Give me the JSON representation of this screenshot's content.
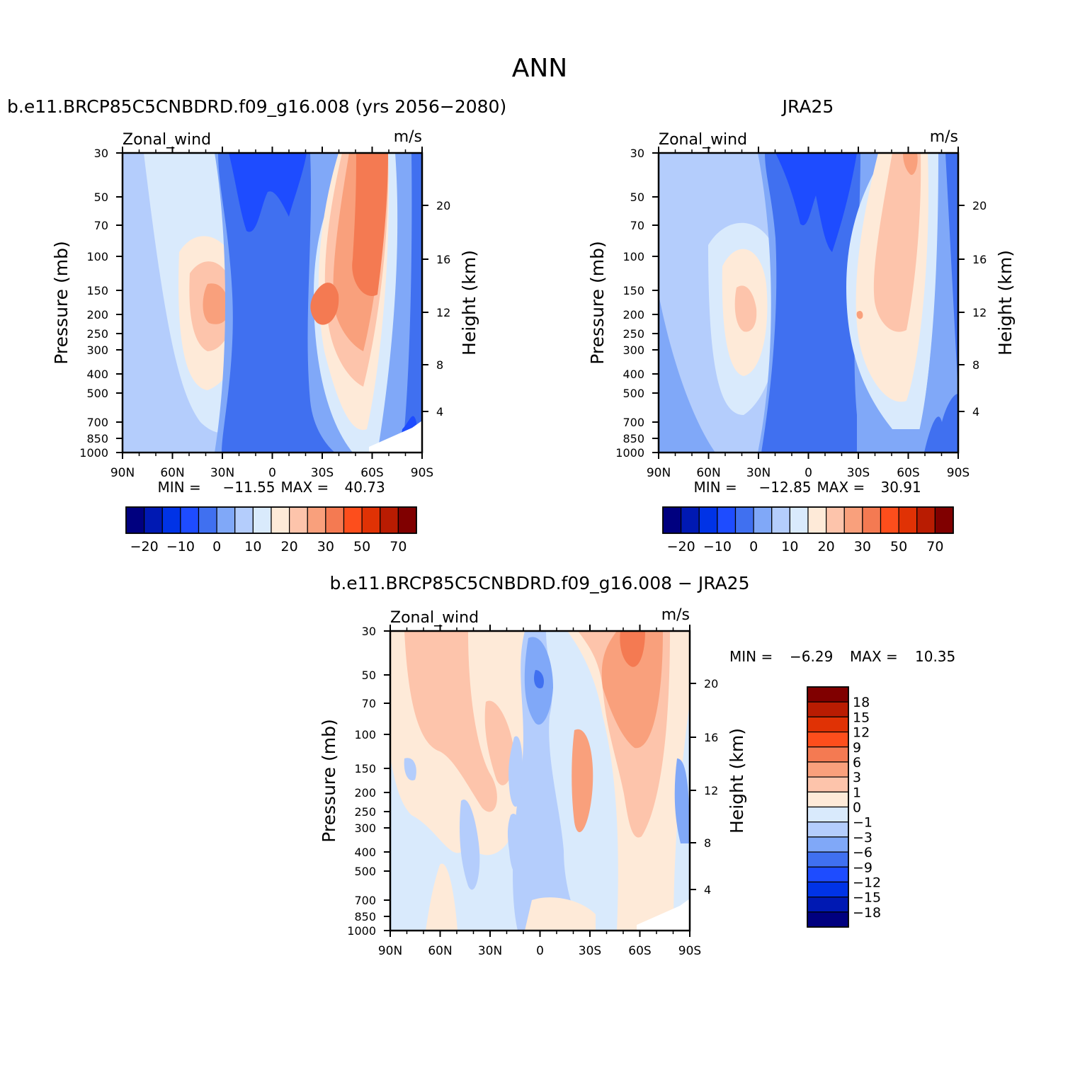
{
  "figure_title": "ANN",
  "chart_data": [
    {
      "type": "heatmap",
      "panel_title": "b.e11.BRCP85C5CNBDRD.f09_g16.008 (yrs 2056-2080)",
      "variable": "Zonal_wind",
      "units": "m/s",
      "ylabel": "Pressure (mb)",
      "ylabel_right": "Height (km)",
      "xticks": [
        "90N",
        "60N",
        "30N",
        "0",
        "30S",
        "60S",
        "90S"
      ],
      "yticks": [
        "30",
        "50",
        "70",
        "100",
        "150",
        "200",
        "250",
        "300",
        "400",
        "500",
        "700",
        "850",
        "1000"
      ],
      "height_ticks": [
        "20",
        "16",
        "12",
        "8",
        "4"
      ],
      "stats": {
        "min_label": "MIN =",
        "min": "-11.55",
        "max_label": "MAX =",
        "max": "40.73"
      },
      "features": [
        {
          "lat": -45,
          "p": 180,
          "value": 33
        },
        {
          "lat": -50,
          "p": 40,
          "value": 40
        },
        {
          "lat": 35,
          "p": 180,
          "value": 23
        },
        {
          "lat": 5,
          "p": 40,
          "value": -11
        }
      ]
    },
    {
      "type": "heatmap",
      "panel_title": "JRA25",
      "variable": "Zonal_wind",
      "units": "m/s",
      "ylabel": "Pressure (mb)",
      "ylabel_right": "Height (km)",
      "xticks": [
        "90N",
        "60N",
        "30N",
        "0",
        "30S",
        "60S",
        "90S"
      ],
      "yticks": [
        "30",
        "50",
        "70",
        "100",
        "150",
        "200",
        "250",
        "300",
        "400",
        "500",
        "700",
        "850",
        "1000"
      ],
      "height_ticks": [
        "20",
        "16",
        "12",
        "8",
        "4"
      ],
      "stats": {
        "min_label": "MIN =",
        "min": "-12.85",
        "max_label": "MAX =",
        "max": "30.91"
      },
      "features": [
        {
          "lat": -50,
          "p": 200,
          "value": 30
        },
        {
          "lat": 35,
          "p": 200,
          "value": 25
        },
        {
          "lat": 10,
          "p": 40,
          "value": -12
        }
      ]
    },
    {
      "type": "heatmap",
      "panel_title": "b.e11.BRCP85C5CNBDRD.f09_g16.008 - JRA25",
      "variable": "Zonal_wind",
      "units": "m/s",
      "ylabel": "Pressure (mb)",
      "ylabel_right": "Height (km)",
      "xticks": [
        "90N",
        "60N",
        "30N",
        "0",
        "30S",
        "60S",
        "90S"
      ],
      "yticks": [
        "30",
        "50",
        "70",
        "100",
        "150",
        "200",
        "250",
        "300",
        "400",
        "500",
        "700",
        "850",
        "1000"
      ],
      "height_ticks": [
        "20",
        "16",
        "12",
        "8",
        "4"
      ],
      "stats": {
        "min_label": "MIN =",
        "min": "-6.29",
        "max_label": "MAX =",
        "max": "10.35"
      },
      "features": [
        {
          "lat": -55,
          "p": 40,
          "value": 10
        },
        {
          "lat": 5,
          "p": 50,
          "value": -6
        }
      ]
    }
  ],
  "colorbars": {
    "main": {
      "labels": [
        "-20",
        "-10",
        "0",
        "10",
        "20",
        "30",
        "50",
        "70"
      ],
      "colors": [
        "#00007f",
        "#0019b3",
        "#0033e6",
        "#1e4cff",
        "#4070f0",
        "#80a8f8",
        "#b4cdfc",
        "#d9eafc",
        "#feead8",
        "#fdc4ab",
        "#f9a07c",
        "#f47a52",
        "#fd4e1c",
        "#e03205",
        "#b91c02",
        "#800000"
      ]
    },
    "diff": {
      "labels": [
        "18",
        "15",
        "12",
        "9",
        "6",
        "3",
        "1",
        "0",
        "-1",
        "-3",
        "-6",
        "-9",
        "-12",
        "-15",
        "-18"
      ],
      "colors": [
        "#800000",
        "#b91c02",
        "#e03205",
        "#fd4e1c",
        "#f47a52",
        "#f9a07c",
        "#fdc4ab",
        "#feead8",
        "#d9eafc",
        "#b4cdfc",
        "#80a8f8",
        "#4070f0",
        "#1e4cff",
        "#0033e6",
        "#0019b3",
        "#00007f"
      ]
    }
  }
}
